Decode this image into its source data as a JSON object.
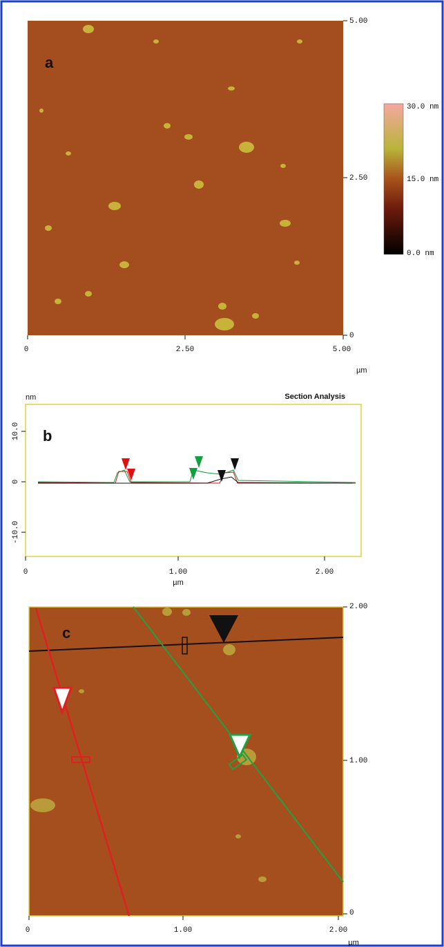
{
  "panel_a": {
    "letter": "a",
    "right_ticks": [
      "5.00",
      "2.50",
      "0"
    ],
    "bottom_ticks": [
      "0",
      "2.50",
      "5.00"
    ],
    "unit": "µm",
    "colorbar_labels": [
      "30.0 nm",
      "15.0 nm",
      "0.0 nm"
    ]
  },
  "panel_b": {
    "letter": "b",
    "y_unit": "nm",
    "title": "Section Analysis",
    "y_ticks": [
      "10.0",
      "0",
      "-10.0"
    ],
    "x_ticks": [
      "0",
      "1.00",
      "2.00"
    ],
    "x_unit": "µm"
  },
  "panel_c": {
    "letter": "c",
    "right_ticks": [
      "2.00",
      "1.00",
      "0"
    ],
    "bottom_ticks": [
      "0",
      "1.00",
      "2.00"
    ],
    "unit": "µm"
  }
}
